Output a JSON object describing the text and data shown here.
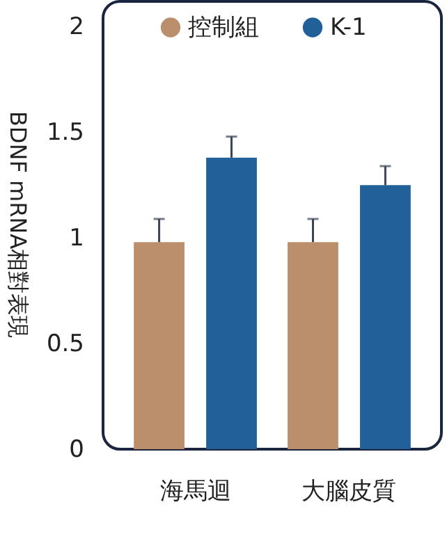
{
  "chart_data": {
    "type": "bar",
    "ylabel": "BDNF mRNA相對表現",
    "categories": [
      "海馬迴",
      "大腦皮質"
    ],
    "series": [
      {
        "name": "控制組",
        "color": "#bb8f6b",
        "values": [
          0.98,
          0.98
        ],
        "errors": [
          [
            0.98,
            1.09
          ],
          [
            0.98,
            1.09
          ]
        ]
      },
      {
        "name": "K-1",
        "color": "#22609a",
        "values": [
          1.38,
          1.25
        ],
        "errors": [
          [
            1.38,
            1.48
          ],
          [
            1.25,
            1.34
          ]
        ]
      }
    ],
    "ylim": [
      0,
      2.12
    ],
    "yticks": [
      0,
      0.5,
      1,
      1.5,
      2
    ],
    "legend": "top"
  }
}
